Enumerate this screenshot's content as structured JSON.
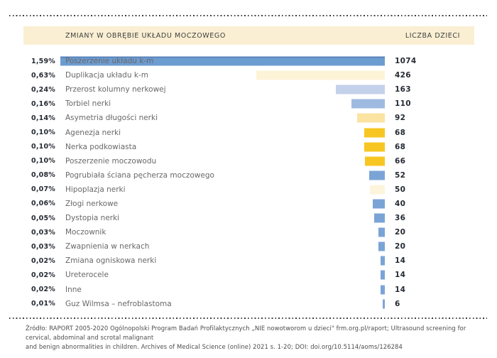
{
  "header": {
    "changes_label": "ZMIANY W OBRĘBIE UKŁADU MOCZOWEGO",
    "count_label": "LICZBA DZIECI",
    "band_color": "#FAEFD3"
  },
  "footer": {
    "line1": "Źródło: RAPORT 2005-2020 Ogólnopolski Program Badań Profilaktycznych „NIE nowotworom u dzieci\" frm.org.pl/raport; Ultrasound screening for cervical, abdominal and scrotal malignant",
    "line2": "and benign abnormalities in children. Archives of Medical Science (online) 2021 s. 1-20; DOI: doi.org/10.5114/aoms/126284"
  },
  "colors": {
    "accent_blue_dark": "#6D9CD1",
    "accent_blue_mid": "#7BA4D6",
    "accent_blue_light": "#9FBAE0",
    "accent_blue_pale": "#C3D1EA",
    "accent_gold": "#F7C623",
    "accent_gold_pale": "#FBE3A2",
    "accent_cream": "#FDF3D7",
    "accent_cream_light": "#FDF4DC",
    "header_band": "#FAEFD3",
    "text_dark": "#252A33",
    "text_gray": "#686868"
  },
  "chart_data": {
    "type": "bar",
    "orientation": "horizontal",
    "title": "ZMIANY W OBRĘBIE UKŁADU MOCZOWEGO",
    "value_axis_label": "LICZBA DZIECI",
    "max_value": 1074,
    "bars_right_aligned": true,
    "categories": [
      "Poszerzenie układu k-m",
      "Duplikacja układu k-m",
      "Przerost kolumny nerkowej",
      "Torbiel nerki",
      "Asymetria długości nerki",
      "Agenezja nerki",
      "Nerka podkowiasta",
      "Poszerzenie moczowodu",
      "Pogrubiała ściana pęcherza moczowego",
      "Hipoplazja nerki",
      "Złogi nerkowe",
      "Dystopia nerki",
      "Moczownik",
      "Zwapnienia w nerkach",
      "Zmiana ogniskowa nerki",
      "Ureterocele",
      "Inne",
      "Guz Wilmsa – nefroblastoma"
    ],
    "values": [
      1074,
      426,
      163,
      110,
      92,
      68,
      68,
      66,
      52,
      50,
      40,
      36,
      20,
      20,
      14,
      14,
      14,
      6
    ],
    "percent_labels": [
      "1,59%",
      "0,63%",
      "0,24%",
      "0,16%",
      "0,14%",
      "0,10%",
      "0,10%",
      "0,10%",
      "0,08%",
      "0,07%",
      "0,06%",
      "0,05%",
      "0,03%",
      "0,03%",
      "0,02%",
      "0,02%",
      "0,02%",
      "0,01%"
    ],
    "bar_colors": [
      "#6D9CD1",
      "#FDF3D7",
      "#C3D1EA",
      "#9FBAE0",
      "#FBE3A2",
      "#F7C623",
      "#F7C623",
      "#F7C623",
      "#7BA4D6",
      "#FDF4DC",
      "#7BA4D6",
      "#7BA4D6",
      "#7BA4D6",
      "#7BA4D6",
      "#7BA4D6",
      "#7BA4D6",
      "#7BA4D6",
      "#7BA4D6"
    ]
  }
}
